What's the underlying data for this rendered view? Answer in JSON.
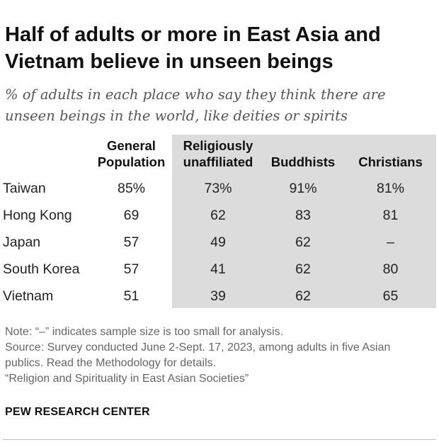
{
  "title": "Half of adults or more in East Asia and Vietnam believe in unseen beings",
  "subtitle": "% of adults in each place who say they think there are unseen beings in the world, like deities or spirits",
  "chart_data": {
    "type": "table",
    "columns": [
      {
        "lines": [
          "General",
          "Population"
        ]
      },
      {
        "lines": [
          "Religiously",
          "unaffiliated"
        ]
      },
      {
        "lines": [
          "Buddhists"
        ]
      },
      {
        "lines": [
          "Christians"
        ]
      }
    ],
    "rows": [
      {
        "label": "Taiwan",
        "values": [
          "85%",
          "73%",
          "91%",
          "81%"
        ]
      },
      {
        "label": "Hong Kong",
        "values": [
          "69",
          "62",
          "83",
          "81"
        ]
      },
      {
        "label": "Japan",
        "values": [
          "57",
          "49",
          "62",
          "–"
        ]
      },
      {
        "label": "South Korea",
        "values": [
          "57",
          "41",
          "62",
          "80"
        ]
      },
      {
        "label": "Vietnam",
        "values": [
          "51",
          "39",
          "62",
          "65"
        ]
      }
    ],
    "shaded_columns": [
      "Religiously unaffiliated",
      "Buddhists",
      "Christians"
    ],
    "shade_color": "#dcdcdc"
  },
  "notes": {
    "note": "Note: “–” indicates sample size is too small for analysis.",
    "source": "Source: Survey conducted June 2-Sept. 17, 2023, among adults in five Asian publics. Read the Methodology for details.",
    "report": "“Religion and Spirituality in East Asian Societies”"
  },
  "brand": "PEW RESEARCH CENTER"
}
